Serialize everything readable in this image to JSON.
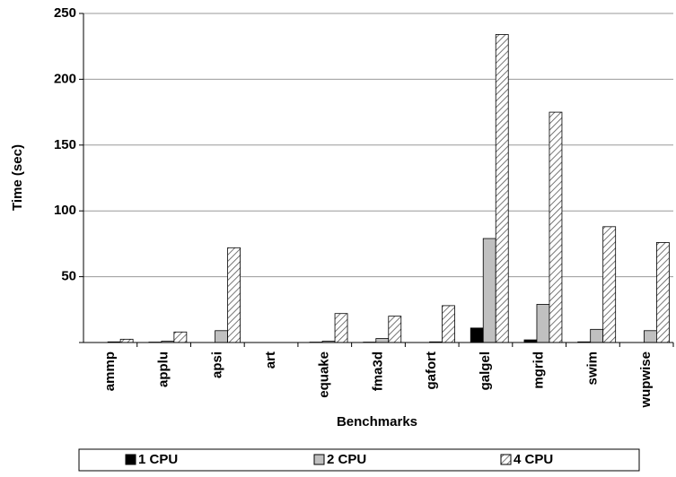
{
  "chart_data": {
    "type": "bar",
    "x_label": "Benchmarks",
    "y_label": "Time (sec)",
    "categories": [
      "ammp",
      "applu",
      "apsi",
      "art",
      "equake",
      "fma3d",
      "gafort",
      "galgel",
      "mgrid",
      "swim",
      "wupwise"
    ],
    "series": [
      {
        "name": "1 CPU",
        "color": "#000000",
        "values": [
          0,
          0.3,
          0,
          0,
          0.3,
          0.3,
          0,
          11,
          2,
          0.5,
          0
        ]
      },
      {
        "name": "2 CPU",
        "color": "#c0c0c0",
        "values": [
          0.5,
          1,
          9,
          0,
          1,
          3,
          0.5,
          79,
          29,
          10,
          9
        ]
      },
      {
        "name": "4 CPU",
        "color": "#ffffff",
        "pattern": "diagonal-hatch",
        "values": [
          2.5,
          8,
          72,
          0,
          22,
          20,
          28,
          234,
          175,
          88,
          76
        ]
      }
    ],
    "ylim": [
      0,
      250
    ],
    "yticks": [
      50,
      100,
      150,
      200,
      250
    ],
    "grid": true,
    "legend": "bottom"
  }
}
